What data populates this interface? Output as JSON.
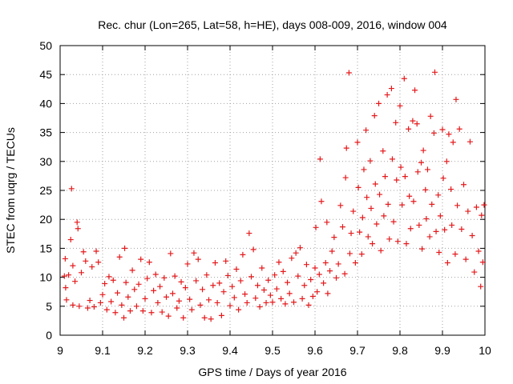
{
  "chart_data": {
    "type": "scatter",
    "title": "Rec. chur (Lon=265, Lat=58, h=HE), days 008-009, 2016, window 004",
    "xlabel": "GPS time / Days of year 2016",
    "ylabel": "STEC from uqrg / TECUs",
    "xlim": [
      9,
      10
    ],
    "ylim": [
      0,
      50
    ],
    "xticks": [
      "9",
      "9.1",
      "9.2",
      "9.3",
      "9.4",
      "9.5",
      "9.6",
      "9.7",
      "9.8",
      "9.9",
      "10"
    ],
    "yticks": [
      "0",
      "5",
      "10",
      "15",
      "20",
      "25",
      "30",
      "35",
      "40",
      "45",
      "50"
    ],
    "grid": true,
    "marker": "plus",
    "color": "#e41a1c",
    "series": [
      {
        "points": [
          [
            9.01,
            10.2
          ],
          [
            9.012,
            13.2
          ],
          [
            9.013,
            8.2
          ],
          [
            9.015,
            6.1
          ],
          [
            9.02,
            10.4
          ],
          [
            9.025,
            16.5
          ],
          [
            9.027,
            25.3
          ],
          [
            9.03,
            5.2
          ],
          [
            9.03,
            12.0
          ],
          [
            9.035,
            9.3
          ],
          [
            9.04,
            19.5
          ],
          [
            9.042,
            18.4
          ],
          [
            9.045,
            5.0
          ],
          [
            9.05,
            10.8
          ],
          [
            9.055,
            14.4
          ],
          [
            9.06,
            12.8
          ],
          [
            9.065,
            4.7
          ],
          [
            9.07,
            6.0
          ],
          [
            9.075,
            11.8
          ],
          [
            9.08,
            4.9
          ],
          [
            9.085,
            14.5
          ],
          [
            9.09,
            12.6
          ],
          [
            9.095,
            5.6
          ],
          [
            9.1,
            7.0
          ],
          [
            9.105,
            8.9
          ],
          [
            9.11,
            4.4
          ],
          [
            9.115,
            10.1
          ],
          [
            9.12,
            5.8
          ],
          [
            9.125,
            9.5
          ],
          [
            9.13,
            3.9
          ],
          [
            9.135,
            7.3
          ],
          [
            9.14,
            13.5
          ],
          [
            9.145,
            5.2
          ],
          [
            9.15,
            3.0
          ],
          [
            9.152,
            15.0
          ],
          [
            9.155,
            9.1
          ],
          [
            9.16,
            6.6
          ],
          [
            9.165,
            4.2
          ],
          [
            9.17,
            11.2
          ],
          [
            9.175,
            7.9
          ],
          [
            9.18,
            5.0
          ],
          [
            9.185,
            8.8
          ],
          [
            9.19,
            13.1
          ],
          [
            9.195,
            4.2
          ],
          [
            9.2,
            6.3
          ],
          [
            9.205,
            9.8
          ],
          [
            9.21,
            12.6
          ],
          [
            9.215,
            3.9
          ],
          [
            9.22,
            7.7
          ],
          [
            9.225,
            10.5
          ],
          [
            9.23,
            5.6
          ],
          [
            9.235,
            8.4
          ],
          [
            9.24,
            4.0
          ],
          [
            9.245,
            9.9
          ],
          [
            9.25,
            6.6
          ],
          [
            9.255,
            3.3
          ],
          [
            9.26,
            14.1
          ],
          [
            9.265,
            7.2
          ],
          [
            9.27,
            10.2
          ],
          [
            9.275,
            4.7
          ],
          [
            9.28,
            5.9
          ],
          [
            9.285,
            9.2
          ],
          [
            9.29,
            3.0
          ],
          [
            9.295,
            8.2
          ],
          [
            9.3,
            12.3
          ],
          [
            9.305,
            6.2
          ],
          [
            9.31,
            4.4
          ],
          [
            9.315,
            14.2
          ],
          [
            9.32,
            9.4
          ],
          [
            9.325,
            13.1
          ],
          [
            9.33,
            5.2
          ],
          [
            9.335,
            7.9
          ],
          [
            9.34,
            3.0
          ],
          [
            9.345,
            10.4
          ],
          [
            9.35,
            6.1
          ],
          [
            9.355,
            2.8
          ],
          [
            9.36,
            8.6
          ],
          [
            9.365,
            12.5
          ],
          [
            9.37,
            5.6
          ],
          [
            9.375,
            9.0
          ],
          [
            9.38,
            3.4
          ],
          [
            9.385,
            7.5
          ],
          [
            9.39,
            12.8
          ],
          [
            9.395,
            10.3
          ],
          [
            9.4,
            5.1
          ],
          [
            9.405,
            8.4
          ],
          [
            9.41,
            6.5
          ],
          [
            9.415,
            11.4
          ],
          [
            9.42,
            4.4
          ],
          [
            9.425,
            9.4
          ],
          [
            9.43,
            13.9
          ],
          [
            9.435,
            7.1
          ],
          [
            9.44,
            5.6
          ],
          [
            9.445,
            17.6
          ],
          [
            9.45,
            10.1
          ],
          [
            9.455,
            14.8
          ],
          [
            9.46,
            6.4
          ],
          [
            9.465,
            8.6
          ],
          [
            9.47,
            4.9
          ],
          [
            9.475,
            11.6
          ],
          [
            9.48,
            7.8
          ],
          [
            9.485,
            5.6
          ],
          [
            9.49,
            9.5
          ],
          [
            9.495,
            6.9
          ],
          [
            9.5,
            5.7
          ],
          [
            9.505,
            10.4
          ],
          [
            9.51,
            8.0
          ],
          [
            9.515,
            12.6
          ],
          [
            9.52,
            6.3
          ],
          [
            9.525,
            11.0
          ],
          [
            9.53,
            5.4
          ],
          [
            9.535,
            9.1
          ],
          [
            9.54,
            7.2
          ],
          [
            9.545,
            13.3
          ],
          [
            9.55,
            5.7
          ],
          [
            9.555,
            14.2
          ],
          [
            9.56,
            10.2
          ],
          [
            9.565,
            15.1
          ],
          [
            9.57,
            6.3
          ],
          [
            9.575,
            8.6
          ],
          [
            9.58,
            12.2
          ],
          [
            9.585,
            5.2
          ],
          [
            9.59,
            9.6
          ],
          [
            9.595,
            6.7
          ],
          [
            9.6,
            11.6
          ],
          [
            9.602,
            18.6
          ],
          [
            9.605,
            7.5
          ],
          [
            9.61,
            10.5
          ],
          [
            9.612,
            30.4
          ],
          [
            9.615,
            23.1
          ],
          [
            9.62,
            9.0
          ],
          [
            9.625,
            12.5
          ],
          [
            9.628,
            19.5
          ],
          [
            9.63,
            7.2
          ],
          [
            9.635,
            11.1
          ],
          [
            9.64,
            14.5
          ],
          [
            9.645,
            16.9
          ],
          [
            9.65,
            9.9
          ],
          [
            9.655,
            12.3
          ],
          [
            9.66,
            22.4
          ],
          [
            9.665,
            18.7
          ],
          [
            9.67,
            10.6
          ],
          [
            9.672,
            27.2
          ],
          [
            9.674,
            32.3
          ],
          [
            9.68,
            45.3
          ],
          [
            9.682,
            14.1
          ],
          [
            9.685,
            17.6
          ],
          [
            9.69,
            21.4
          ],
          [
            9.695,
            12.5
          ],
          [
            9.7,
            33.3
          ],
          [
            9.702,
            25.5
          ],
          [
            9.705,
            17.8
          ],
          [
            9.71,
            14.0
          ],
          [
            9.712,
            20.3
          ],
          [
            9.715,
            28.6
          ],
          [
            9.72,
            35.4
          ],
          [
            9.722,
            23.8
          ],
          [
            9.725,
            17.0
          ],
          [
            9.73,
            30.1
          ],
          [
            9.732,
            21.9
          ],
          [
            9.735,
            15.8
          ],
          [
            9.74,
            37.9
          ],
          [
            9.742,
            26.1
          ],
          [
            9.745,
            19.2
          ],
          [
            9.75,
            40.0
          ],
          [
            9.752,
            24.3
          ],
          [
            9.755,
            14.6
          ],
          [
            9.76,
            31.8
          ],
          [
            9.762,
            20.6
          ],
          [
            9.765,
            27.4
          ],
          [
            9.77,
            41.5
          ],
          [
            9.772,
            22.6
          ],
          [
            9.775,
            16.6
          ],
          [
            9.78,
            42.6
          ],
          [
            9.782,
            30.4
          ],
          [
            9.785,
            19.6
          ],
          [
            9.79,
            36.7
          ],
          [
            9.792,
            26.8
          ],
          [
            9.795,
            16.2
          ],
          [
            9.8,
            39.6
          ],
          [
            9.802,
            29.0
          ],
          [
            9.805,
            22.5
          ],
          [
            9.81,
            44.3
          ],
          [
            9.812,
            27.4
          ],
          [
            9.815,
            15.8
          ],
          [
            9.82,
            35.6
          ],
          [
            9.822,
            24.0
          ],
          [
            9.825,
            18.4
          ],
          [
            9.83,
            37.0
          ],
          [
            9.832,
            23.1
          ],
          [
            9.835,
            42.3
          ],
          [
            9.84,
            36.5
          ],
          [
            9.842,
            28.2
          ],
          [
            9.845,
            19.0
          ],
          [
            9.85,
            29.8
          ],
          [
            9.852,
            14.9
          ],
          [
            9.855,
            31.9
          ],
          [
            9.86,
            25.1
          ],
          [
            9.862,
            20.1
          ],
          [
            9.865,
            28.6
          ],
          [
            9.87,
            17.0
          ],
          [
            9.872,
            37.8
          ],
          [
            9.875,
            22.6
          ],
          [
            9.88,
            34.9
          ],
          [
            9.882,
            45.4
          ],
          [
            9.885,
            17.9
          ],
          [
            9.89,
            24.2
          ],
          [
            9.892,
            14.3
          ],
          [
            9.895,
            20.6
          ],
          [
            9.9,
            35.5
          ],
          [
            9.902,
            27.1
          ],
          [
            9.905,
            18.2
          ],
          [
            9.91,
            30.0
          ],
          [
            9.912,
            12.5
          ],
          [
            9.915,
            34.7
          ],
          [
            9.92,
            25.2
          ],
          [
            9.922,
            19.0
          ],
          [
            9.925,
            33.3
          ],
          [
            9.93,
            14.0
          ],
          [
            9.932,
            40.7
          ],
          [
            9.935,
            22.4
          ],
          [
            9.94,
            35.6
          ],
          [
            9.945,
            18.3
          ],
          [
            9.95,
            26.0
          ],
          [
            9.955,
            13.1
          ],
          [
            9.96,
            21.4
          ],
          [
            9.965,
            33.4
          ],
          [
            9.97,
            17.2
          ],
          [
            9.975,
            10.9
          ],
          [
            9.98,
            22.1
          ],
          [
            9.985,
            14.5
          ],
          [
            9.99,
            8.4
          ],
          [
            9.992,
            20.7
          ],
          [
            9.995,
            12.6
          ],
          [
            9.998,
            22.5
          ]
        ]
      }
    ]
  }
}
